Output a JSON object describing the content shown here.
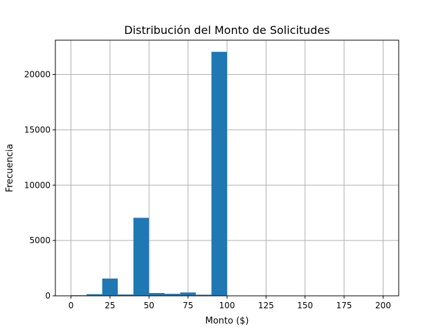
{
  "chart_data": {
    "type": "bar",
    "title": "Distribución del Monto de Solicitudes",
    "xlabel": "Monto ($)",
    "ylabel": "Frecuencia",
    "xlim": [
      -10,
      210
    ],
    "ylim": [
      0,
      23100
    ],
    "x_ticks": [
      0,
      25,
      50,
      75,
      100,
      125,
      150,
      175,
      200
    ],
    "y_ticks": [
      0,
      5000,
      10000,
      15000,
      20000
    ],
    "grid": true,
    "bar_color": "#1f77b4",
    "bins": [
      {
        "x0": 0,
        "x1": 10,
        "value": 50
      },
      {
        "x0": 10,
        "x1": 20,
        "value": 150
      },
      {
        "x0": 20,
        "x1": 30,
        "value": 1560
      },
      {
        "x0": 30,
        "x1": 40,
        "value": 120
      },
      {
        "x0": 40,
        "x1": 50,
        "value": 7050
      },
      {
        "x0": 50,
        "x1": 60,
        "value": 250
      },
      {
        "x0": 60,
        "x1": 70,
        "value": 180
      },
      {
        "x0": 70,
        "x1": 80,
        "value": 300
      },
      {
        "x0": 80,
        "x1": 90,
        "value": 100
      },
      {
        "x0": 90,
        "x1": 100,
        "value": 22050
      }
    ]
  }
}
